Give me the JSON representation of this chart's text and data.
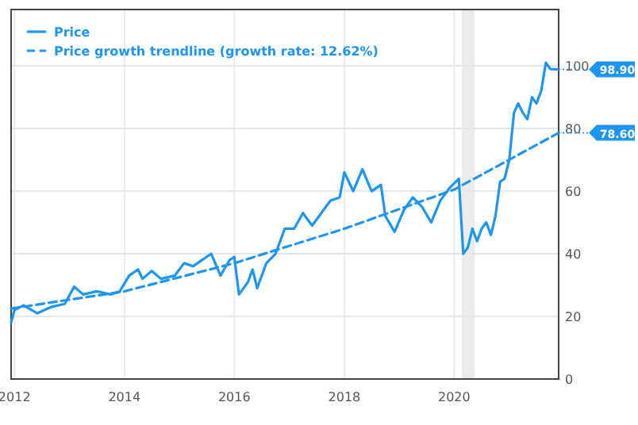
{
  "chart_data": {
    "type": "line",
    "grid": true,
    "legend": "top left",
    "xlim": [
      "2011-12-10",
      "2021-11-25"
    ],
    "xticks": [
      {
        "value": "2012",
        "label": "2012"
      },
      {
        "value": "2014",
        "label": "2014"
      },
      {
        "value": "2016",
        "label": "2016"
      },
      {
        "value": "2018",
        "label": "2018"
      },
      {
        "value": "2020",
        "label": "2020"
      }
    ],
    "ylim": [
      0,
      118
    ],
    "yticks": [
      0,
      20,
      40,
      60,
      80,
      100
    ],
    "bands": [
      {
        "axis": "x",
        "from": "2020-02-20",
        "to": "2020-05-15",
        "color": "#ebebeb"
      }
    ],
    "annotations": [
      "98.90",
      "78.60"
    ],
    "series": [
      {
        "name": "Price",
        "color": "#1e96f0",
        "line_style": "solid",
        "x": [
          "2011-12-10",
          "2012-01",
          "2012-03",
          "2012-06",
          "2012-09",
          "2012-12",
          "2013-02",
          "2013-04",
          "2013-07",
          "2013-10",
          "2013-12",
          "2014-02",
          "2014-04",
          "2014-05",
          "2014-07",
          "2014-09",
          "2014-12",
          "2015-02",
          "2015-04",
          "2015-06",
          "2015-08",
          "2015-10",
          "2015-12",
          "2016-01",
          "2016-02",
          "2016-04",
          "2016-05",
          "2016-06",
          "2016-08",
          "2016-10",
          "2016-12",
          "2017-02",
          "2017-04",
          "2017-06",
          "2017-08",
          "2017-10",
          "2017-12",
          "2018-01",
          "2018-03",
          "2018-05",
          "2018-07",
          "2018-09",
          "2018-10",
          "2018-12",
          "2019-02",
          "2019-04",
          "2019-06",
          "2019-08",
          "2019-10",
          "2019-12",
          "2020-02",
          "2020-03",
          "2020-04",
          "2020-05",
          "2020-06",
          "2020-07",
          "2020-08",
          "2020-09",
          "2020-10",
          "2020-11",
          "2020-12",
          "2021-01",
          "2021-02",
          "2021-03",
          "2021-04",
          "2021-05",
          "2021-06",
          "2021-07",
          "2021-08",
          "2021-09",
          "2021-10",
          "2021-11-25"
        ],
        "values": [
          18,
          22,
          23.5,
          21,
          23,
          24,
          29.5,
          27,
          28,
          27,
          28,
          33,
          35,
          32,
          34.5,
          32,
          33,
          37,
          36,
          38,
          40,
          33,
          38,
          39,
          27,
          31,
          35,
          29,
          37,
          40,
          48,
          48,
          53,
          49,
          53,
          57,
          58,
          66,
          60,
          67,
          60,
          62,
          52,
          47,
          54,
          58,
          55,
          50,
          57,
          61,
          64,
          40,
          42,
          48,
          44,
          48,
          50,
          46,
          52,
          63,
          64,
          70,
          85,
          88,
          85,
          83,
          90,
          88,
          92,
          101,
          99,
          98.9
        ]
      },
      {
        "name": "Price growth trendline (growth rate: 12.62%)",
        "color": "#1e96f0",
        "line_style": "dashed",
        "x": [
          "2011-12-10",
          "2014",
          "2016",
          "2018",
          "2020",
          "2021-11-25"
        ],
        "values": [
          22.5,
          28,
          37,
          48,
          60.5,
          78.6
        ]
      }
    ]
  }
}
